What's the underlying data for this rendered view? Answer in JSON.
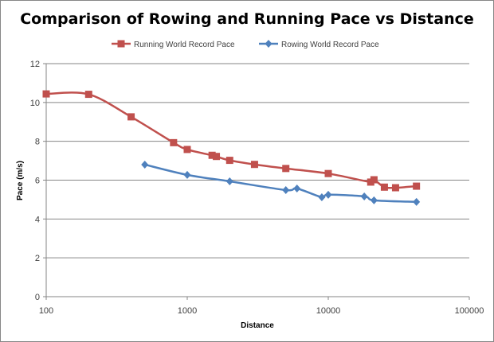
{
  "chart_data": {
    "type": "line",
    "title": "Comparison of Rowing and Running Pace vs Distance",
    "xlabel": "Distance",
    "ylabel": "Pace (m/s)",
    "xscale": "log",
    "xlim": [
      100,
      100000
    ],
    "ylim": [
      0,
      12
    ],
    "xticks": [
      "100",
      "1000",
      "10000",
      "100000"
    ],
    "yticks": [
      "0",
      "2",
      "4",
      "6",
      "8",
      "10",
      "12"
    ],
    "grid": "horizontal",
    "legend_position": "top",
    "smoothed": true,
    "series": [
      {
        "name": "Running World Record Pace",
        "color": "#C0504D",
        "marker": "square",
        "x": [
          100,
          200,
          400,
          800,
          1000,
          1500,
          1609,
          2000,
          3000,
          5000,
          10000,
          20000,
          21097,
          25000,
          30000,
          42195
        ],
        "y": [
          10.44,
          10.42,
          9.26,
          7.93,
          7.58,
          7.28,
          7.22,
          7.02,
          6.81,
          6.6,
          6.34,
          5.9,
          6.02,
          5.64,
          5.61,
          5.69
        ]
      },
      {
        "name": "Rowing World Record Pace",
        "color": "#4F81BD",
        "marker": "diamond",
        "x": [
          500,
          1000,
          2000,
          5000,
          6000,
          9000,
          10000,
          18000,
          21097,
          42195
        ],
        "y": [
          6.8,
          6.27,
          5.94,
          5.49,
          5.57,
          5.12,
          5.25,
          5.16,
          4.96,
          4.88
        ]
      }
    ]
  }
}
